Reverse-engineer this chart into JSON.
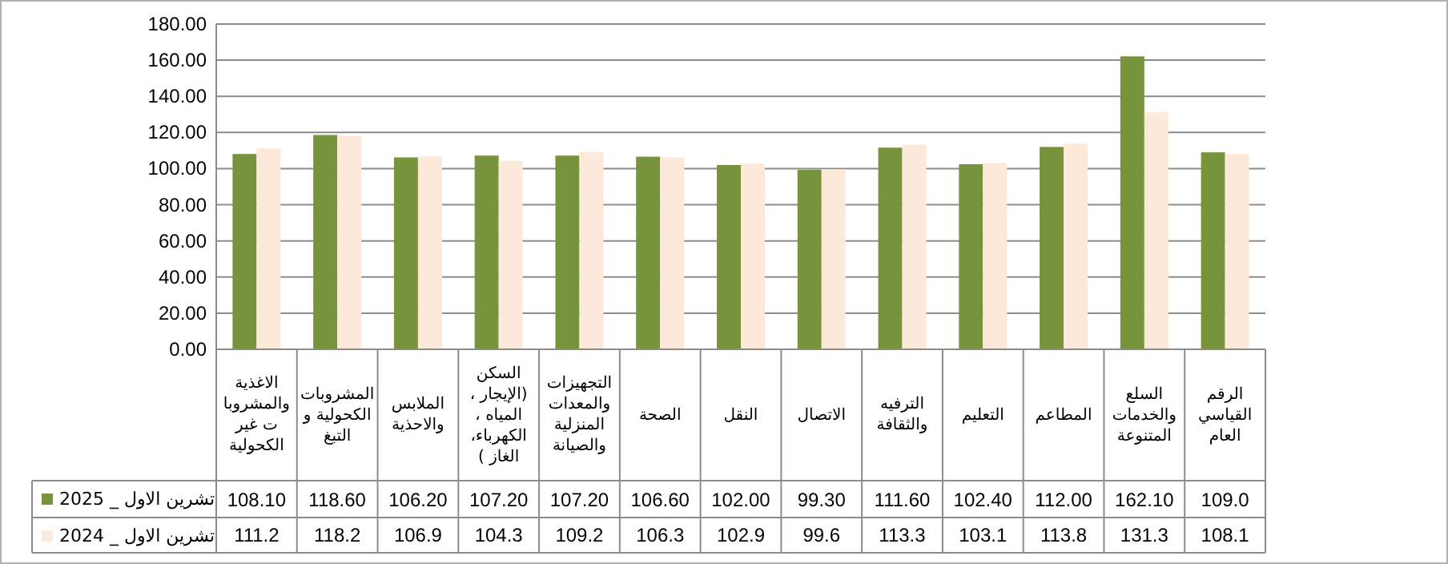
{
  "chart_data": {
    "type": "bar",
    "categories": [
      "الاغذية والمشروبات غير الكحولية",
      "المشروبات الكحولية و التبغ",
      "الملابس والاحذية",
      "السكن (الإيجار ، المياه ، الكهرباء، الغاز )",
      "التجهيزات والمعدات المنزلية والصيانة",
      "الصحة",
      "النقل",
      "الاتصال",
      "الترفيه والثقافة",
      "التعليم",
      "المطاعم",
      "السلع والخدمات المتنوعة",
      "الرقم القياسي العام"
    ],
    "series": [
      {
        "name": "تشرين الاول _ 2025",
        "color": "#77933c",
        "values": [
          108.1,
          118.6,
          106.2,
          107.2,
          107.2,
          106.6,
          102.0,
          99.3,
          111.6,
          102.4,
          112.0,
          162.1,
          109.0
        ],
        "value_labels": [
          "108.10",
          "118.60",
          "106.20",
          "107.20",
          "107.20",
          "106.60",
          "102.00",
          "99.30",
          "111.60",
          "102.40",
          "112.00",
          "162.10",
          "109.0"
        ]
      },
      {
        "name": "تشرين الاول _ 2024",
        "color": "#fde9d9",
        "values": [
          111.2,
          118.2,
          106.9,
          104.3,
          109.2,
          106.3,
          102.9,
          99.6,
          113.3,
          103.1,
          113.8,
          131.3,
          108.1
        ],
        "value_labels": [
          "111.2",
          "118.2",
          "106.9",
          "104.3",
          "109.2",
          "106.3",
          "102.9",
          "99.6",
          "113.3",
          "103.1",
          "113.8",
          "131.3",
          "108.1"
        ]
      }
    ],
    "ylim": [
      0,
      180
    ],
    "yticks": [
      {
        "value": 0,
        "label": "0.00"
      },
      {
        "value": 20,
        "label": "20.00"
      },
      {
        "value": 40,
        "label": "40.00"
      },
      {
        "value": 60,
        "label": "60.00"
      },
      {
        "value": 80,
        "label": "80.00"
      },
      {
        "value": 100,
        "label": "100.00"
      },
      {
        "value": 120,
        "label": "120.00"
      },
      {
        "value": 140,
        "label": "140.00"
      },
      {
        "value": 160,
        "label": "160.00"
      },
      {
        "value": 180,
        "label": "180.00"
      }
    ],
    "grid": "y",
    "legend": "bottom left"
  }
}
